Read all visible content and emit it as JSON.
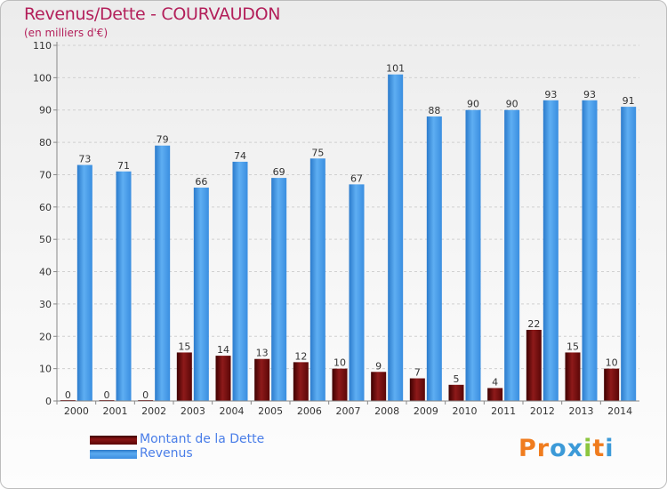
{
  "title": "Revenus/Dette - COURVAUDON",
  "subtitle": "(en milliers d'€)",
  "colors": {
    "dette": "#7a0a0a",
    "revenus": "#3d8ee0",
    "title": "#b31f5a",
    "legend_text": "#4a7ee8"
  },
  "legend": [
    {
      "label": "Montant de la Dette",
      "color": "#7a0a0a"
    },
    {
      "label": "Revenus",
      "color": "#3d8ee0"
    }
  ],
  "logo": {
    "text": "Proxiti",
    "letters": [
      "P",
      "r",
      "o",
      "x",
      "i",
      "t",
      "i"
    ],
    "colors": [
      "#f07c1e",
      "#f07c1e",
      "#3c9ad8",
      "#3c9ad8",
      "#8cc63f",
      "#f07c1e",
      "#3c9ad8"
    ]
  },
  "chart_data": {
    "type": "bar",
    "categories": [
      "2000",
      "2001",
      "2002",
      "2003",
      "2004",
      "2005",
      "2006",
      "2007",
      "2008",
      "2009",
      "2010",
      "2011",
      "2012",
      "2013",
      "2014"
    ],
    "series": [
      {
        "name": "Montant de la Dette",
        "values": [
          0,
          0,
          0,
          15,
          14,
          13,
          12,
          10,
          9,
          7,
          5,
          4,
          22,
          15,
          10
        ]
      },
      {
        "name": "Revenus",
        "values": [
          73,
          71,
          79,
          66,
          74,
          69,
          75,
          67,
          101,
          88,
          90,
          90,
          93,
          93,
          91
        ]
      }
    ],
    "title": "Revenus/Dette - COURVAUDON",
    "ylabel": "",
    "xlabel": "",
    "ylim": [
      0,
      110
    ],
    "yticks": [
      0,
      10,
      20,
      30,
      40,
      50,
      60,
      70,
      80,
      90,
      100,
      110
    ],
    "grid": true,
    "legend_position": "bottom-left"
  }
}
